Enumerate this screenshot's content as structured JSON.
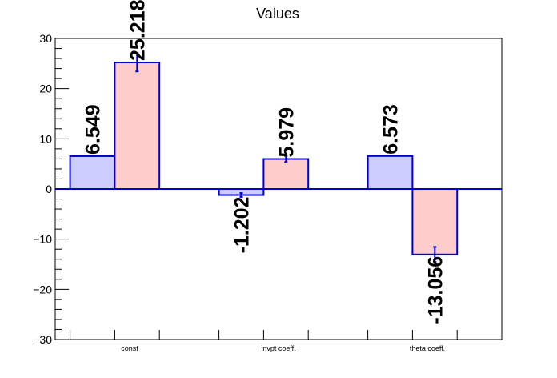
{
  "chart_data": {
    "type": "bar",
    "title": "Values",
    "categories": [
      "const",
      "invpt coeff.",
      "theta coeff."
    ],
    "ylim": [
      -30,
      30
    ],
    "yticks": [
      30,
      20,
      10,
      0,
      -10,
      -20,
      -30
    ],
    "ytick_labels": [
      "30",
      "20",
      "10",
      "0",
      "−10",
      "−20",
      "−30"
    ],
    "series": [
      {
        "color": "#ccccff",
        "values": [
          6.549,
          -1.202,
          6.573
        ],
        "labels": [
          "6.549",
          "-1.202",
          "6.573"
        ],
        "errors": [
          0,
          0.4,
          0
        ]
      },
      {
        "color": "#ffcccc",
        "values": [
          25.218,
          5.979,
          -13.056
        ],
        "labels": [
          "25.218",
          "5.979",
          "-13.056"
        ],
        "errors": [
          1.8,
          0.6,
          1.5
        ]
      }
    ],
    "edge_color": "#0000cc",
    "grid": false,
    "legend": "none"
  }
}
